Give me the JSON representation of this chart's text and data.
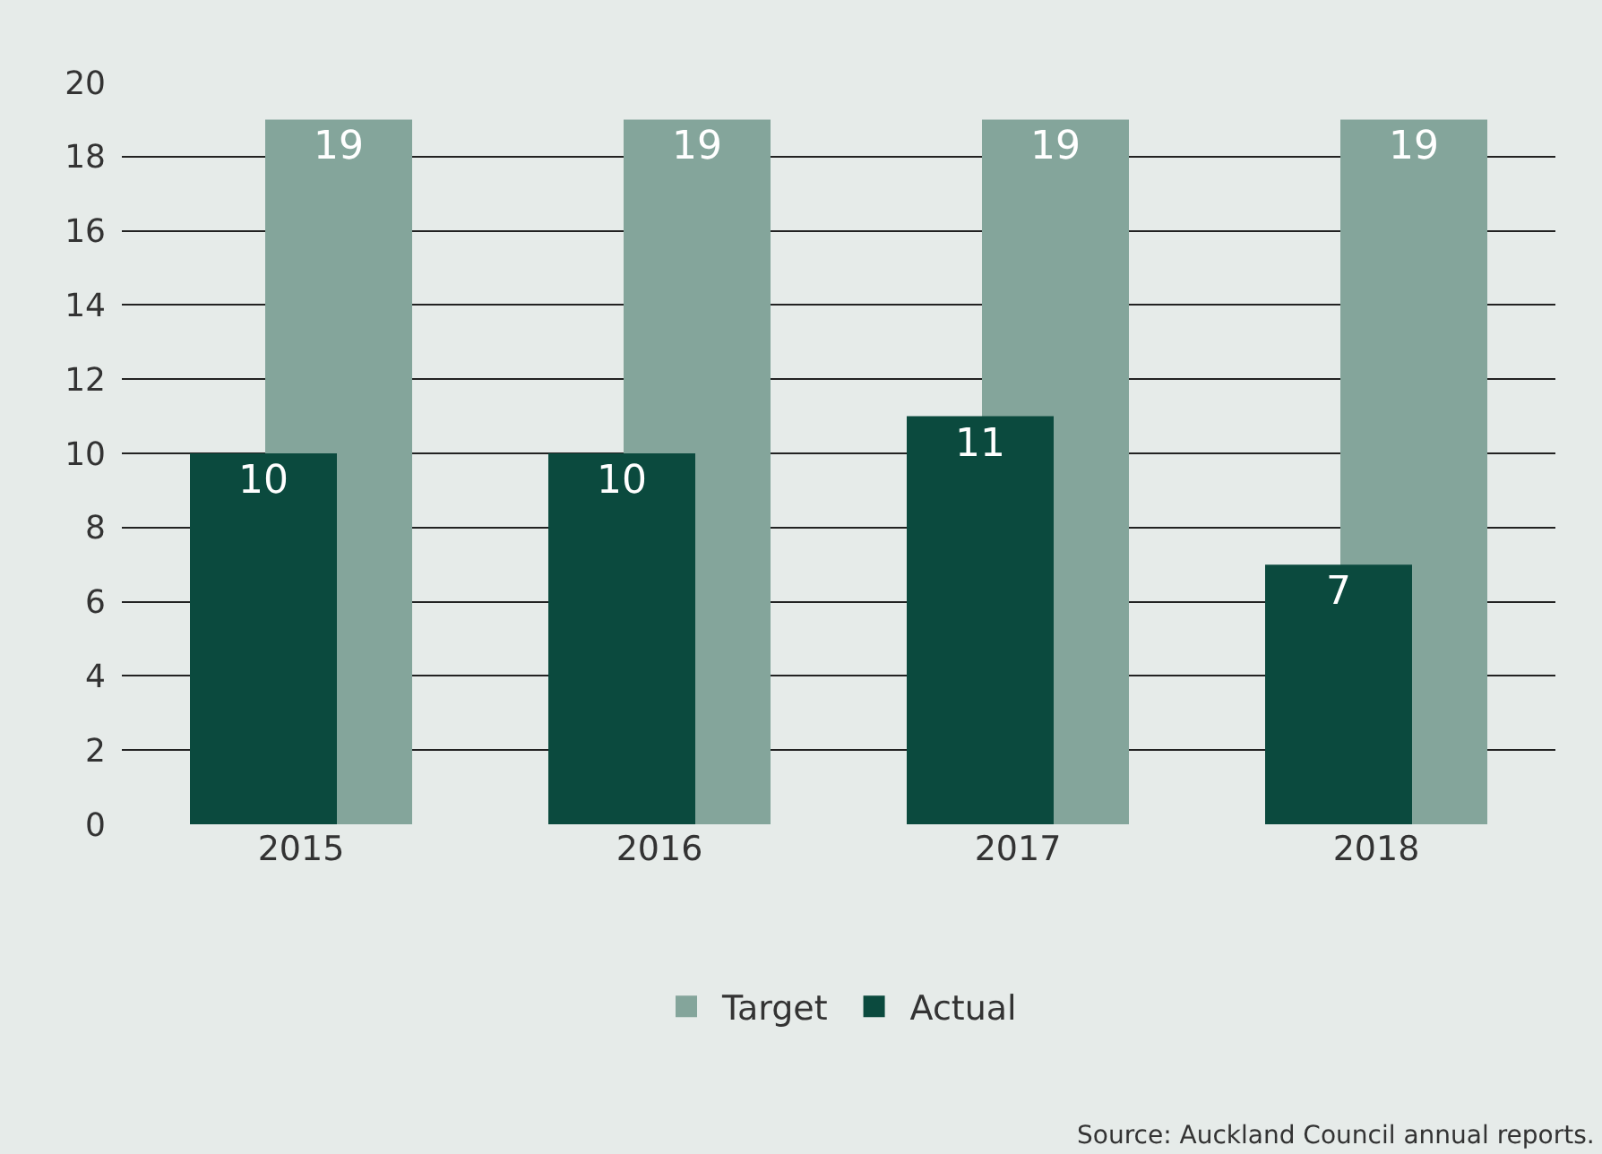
{
  "chart_data": {
    "type": "bar",
    "categories": [
      "2015",
      "2016",
      "2017",
      "2018"
    ],
    "series": [
      {
        "name": "Target",
        "color": "#84a59b",
        "values": [
          19,
          19,
          19,
          19
        ]
      },
      {
        "name": "Actual",
        "color": "#0b4a3e",
        "values": [
          10,
          10,
          11,
          7
        ]
      }
    ],
    "ylim": [
      0,
      20
    ],
    "yticks": [
      0,
      2,
      4,
      6,
      8,
      10,
      12,
      14,
      16,
      18,
      20
    ],
    "grid": "y",
    "legend": "bottom",
    "data_labels": true,
    "annotations": [
      "Source: Auckland Council annual reports."
    ]
  }
}
